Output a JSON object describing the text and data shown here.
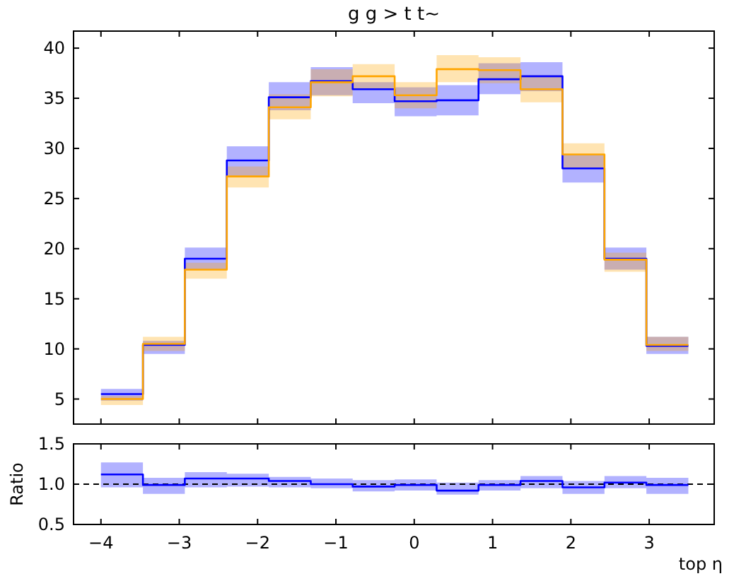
{
  "chart_data": [
    {
      "type": "step",
      "title": "g g > t t~",
      "x": [
        -4,
        -3.464,
        -2.929,
        -2.393,
        -1.857,
        -1.321,
        -0.786,
        -0.25,
        0.286,
        0.821,
        1.357,
        1.893,
        2.429,
        2.964,
        3.5
      ],
      "series": [
        {
          "color": "#0000ff",
          "values": [
            5.5,
            10.4,
            19.0,
            28.8,
            35.1,
            36.7,
            35.9,
            34.7,
            34.8,
            36.9,
            37.2,
            28.0,
            19.0,
            10.3,
            10.3
          ],
          "lower": [
            4.85,
            9.5,
            17.9,
            27.1,
            33.8,
            35.3,
            34.5,
            33.2,
            33.3,
            35.4,
            35.7,
            26.6,
            17.9,
            9.5,
            9.5
          ],
          "upper": [
            6.0,
            10.8,
            20.1,
            30.2,
            36.6,
            38.1,
            36.6,
            36.1,
            36.3,
            38.5,
            38.6,
            29.4,
            20.1,
            11.2,
            11.2
          ]
        },
        {
          "color": "#ffa500",
          "values": [
            5.0,
            10.5,
            17.9,
            27.2,
            34.1,
            36.6,
            37.2,
            35.3,
            37.9,
            37.8,
            35.9,
            29.4,
            18.9,
            10.4,
            10.4
          ],
          "lower": [
            4.4,
            9.8,
            17.0,
            26.1,
            32.9,
            35.2,
            35.9,
            34.0,
            36.6,
            36.5,
            34.6,
            28.0,
            17.7,
            9.8,
            9.8
          ],
          "upper": [
            5.3,
            11.2,
            18.6,
            28.2,
            35.4,
            37.9,
            38.4,
            36.6,
            39.3,
            39.1,
            37.3,
            30.5,
            19.6,
            11.2,
            11.2
          ]
        }
      ],
      "xlim": [
        -4.35,
        3.83
      ],
      "xticks": [
        -4,
        -3,
        -2,
        -1,
        0,
        1,
        2,
        3
      ],
      "ylim": [
        2.5,
        41.7
      ],
      "yticks": [
        5,
        10,
        15,
        20,
        25,
        30,
        35,
        40
      ],
      "tick_labels": "y"
    },
    {
      "type": "step",
      "ylabel": "Ratio",
      "xlabel": "top η",
      "x": [
        -4,
        -3.464,
        -2.929,
        -2.393,
        -1.857,
        -1.321,
        -0.786,
        -0.25,
        0.286,
        0.821,
        1.357,
        1.893,
        2.429,
        2.964,
        3.5
      ],
      "series": [
        {
          "color": "#0000ff",
          "values": [
            1.12,
            0.99,
            1.07,
            1.07,
            1.04,
            1.0,
            0.97,
            0.99,
            0.92,
            0.99,
            1.04,
            0.96,
            1.02,
            0.99,
            0.99
          ],
          "lower": [
            0.96,
            0.88,
            0.96,
            0.97,
            0.96,
            0.95,
            0.91,
            0.92,
            0.87,
            0.92,
            0.95,
            0.88,
            0.95,
            0.88,
            0.88
          ],
          "upper": [
            1.27,
            1.08,
            1.15,
            1.13,
            1.09,
            1.07,
            1.05,
            1.06,
            1.02,
            1.05,
            1.1,
            1.04,
            1.1,
            1.08,
            1.08
          ]
        }
      ],
      "xlim": [
        -4.35,
        3.83
      ],
      "xticks": [
        {
          "value": -4,
          "label": "−4"
        },
        {
          "value": -3,
          "label": "−3"
        },
        {
          "value": -2,
          "label": "−2"
        },
        {
          "value": -1,
          "label": "−1"
        },
        0,
        1,
        2,
        3
      ],
      "ylim": [
        0.5,
        1.5
      ],
      "yticks": [
        {
          "value": 0.5,
          "label": "0.5"
        },
        {
          "value": 1,
          "label": "1.0"
        },
        {
          "value": 1.5,
          "label": "1.5"
        }
      ],
      "ref_lines": [
        {
          "axis": "y",
          "value": 1,
          "color": "#000000",
          "line_style": "dashed"
        }
      ]
    }
  ]
}
